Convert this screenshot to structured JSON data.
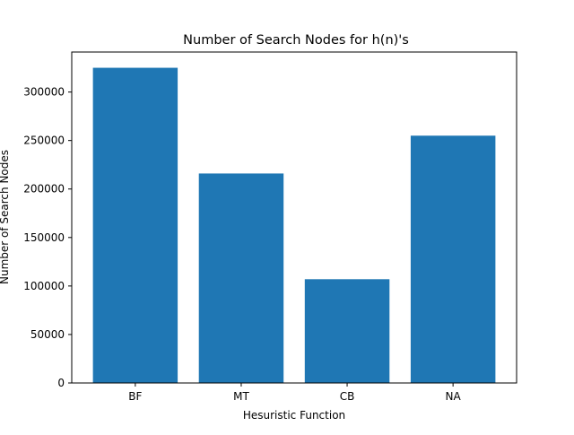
{
  "chart_data": {
    "type": "bar",
    "title": "Number of Search Nodes for h(n)'s",
    "xlabel": "Hesuristic Function",
    "ylabel": "Number of Search Nodes",
    "categories": [
      "BF",
      "MT",
      "CB",
      "NA"
    ],
    "values": [
      325000,
      216000,
      107000,
      255000
    ],
    "ylim": [
      0,
      341250
    ],
    "yticks": [
      0,
      50000,
      100000,
      150000,
      200000,
      250000,
      300000
    ],
    "ytick_labels": [
      "0",
      "50000",
      "100000",
      "150000",
      "200000",
      "250000",
      "300000"
    ],
    "grid": false,
    "bar_color": "#1f77b4"
  }
}
